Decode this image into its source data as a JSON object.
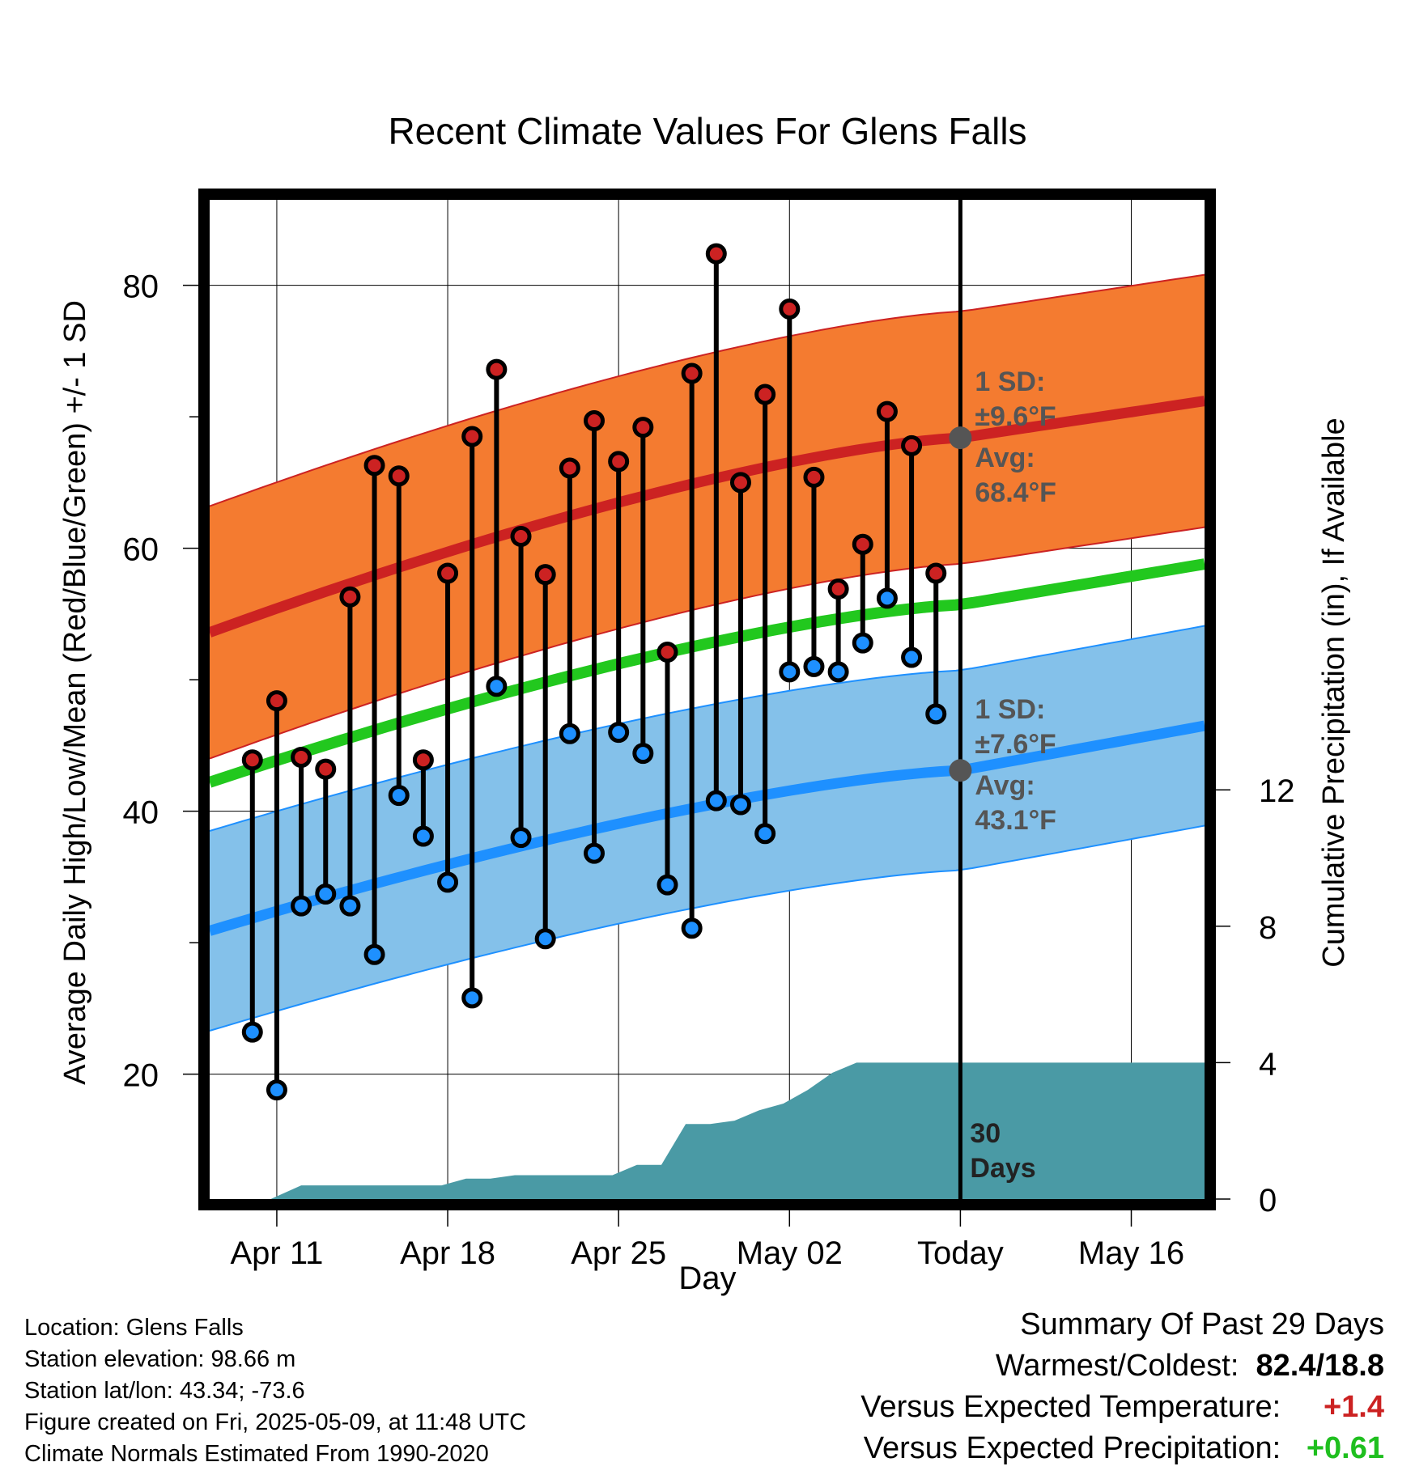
{
  "chart_data": {
    "type": "line",
    "title": "Recent Climate Values For Glens Falls",
    "xlabel": "Day",
    "ylabel": "Average Daily High/Low/Mean (Red/Blue/Green) +/- 1 SD",
    "y2label": "Cumulative Precipitation (in), If Available",
    "ylim": [
      10.5,
      86.5
    ],
    "y2lim": [
      0,
      29.3
    ],
    "yticks": [
      "20",
      "40",
      "60",
      "80"
    ],
    "y2ticks": [
      "0",
      "4",
      "8",
      "12"
    ],
    "xlim": [
      -1.75,
      39.0
    ],
    "xticks": [
      {
        "label": "Apr 11",
        "day": 1
      },
      {
        "label": "Apr 18",
        "day": 8
      },
      {
        "label": "Apr 25",
        "day": 15
      },
      {
        "label": "May 02",
        "day": 22
      },
      {
        "label": "Today",
        "day": 29
      },
      {
        "label": "May 16",
        "day": 36
      }
    ],
    "today_day": 29,
    "today_label_line1": "30",
    "today_label_line2": "Days",
    "grid": true,
    "normals": {
      "high_avg": {
        "start": 53.6,
        "today": 68.4,
        "end": 71.2
      },
      "high_sd": 9.6,
      "low_avg": {
        "start": 30.9,
        "today": 43.1,
        "end": 46.5
      },
      "low_sd": 7.6,
      "mean_avg": {
        "start": 42.2,
        "today": 55.7,
        "end": 58.8
      }
    },
    "annotations": {
      "high_sd_line1": "1 SD:",
      "high_sd_line2": "±9.6°F",
      "high_avg_line1": "Avg:",
      "high_avg_line2": "68.4°F",
      "low_sd_line1": "1 SD:",
      "low_sd_line2": "±7.6°F",
      "low_avg_line1": "Avg:",
      "low_avg_line2": "43.1°F"
    },
    "series": [
      {
        "name": "High",
        "color": "#cc2222",
        "values": [
          43.9,
          48.4,
          44.1,
          43.2,
          56.3,
          66.3,
          65.5,
          43.9,
          58.1,
          68.5,
          73.6,
          60.9,
          58.0,
          66.1,
          69.7,
          66.6,
          69.2,
          52.1,
          73.3,
          82.4,
          65.0,
          71.7,
          78.2,
          65.4,
          56.9,
          60.3,
          70.4,
          67.8,
          58.1
        ]
      },
      {
        "name": "Low",
        "color": "#1e90ff",
        "values": [
          23.2,
          18.8,
          32.8,
          33.7,
          32.8,
          29.1,
          41.2,
          38.1,
          34.6,
          25.8,
          49.5,
          38.0,
          30.3,
          45.9,
          36.8,
          46.0,
          44.4,
          34.4,
          31.1,
          40.8,
          40.5,
          38.3,
          50.6,
          51.0,
          50.6,
          52.8,
          56.2,
          51.7,
          47.4
        ]
      }
    ],
    "precip_x": [
      -1.75,
      0.75,
      2.0,
      7.75,
      8.75,
      9.75,
      10.75,
      14.75,
      15.75,
      16.75,
      17.75,
      18.75,
      19.75,
      20.75,
      21.75,
      22.75,
      23.75,
      24.75,
      25.75,
      29,
      39
    ],
    "precip_values": [
      0,
      0,
      0.4,
      0.4,
      0.6,
      0.6,
      0.7,
      0.7,
      1.0,
      1.0,
      2.2,
      2.2,
      2.3,
      2.6,
      2.8,
      3.2,
      3.7,
      4.0,
      4.0,
      4.0,
      4.0
    ]
  },
  "footer": {
    "location": "Location: Glens Falls",
    "elevation": "Station elevation: 98.66 m",
    "latlon": "Station lat/lon: 43.34; -73.6",
    "created": "Figure created on Fri, 2025-05-09, at 11:48 UTC",
    "normals": "Climate Normals Estimated From 1990-2020"
  },
  "summary": {
    "title": "Summary Of Past 29 Days",
    "warmest_label": "Warmest/Coldest:",
    "warmest_value": "82.4/18.8",
    "temp_label": "Versus Expected Temperature:",
    "temp_value": "+1.4",
    "temp_color": "#cc2222",
    "precip_label": "Versus Expected Precipitation:",
    "precip_value": "+0.61",
    "precip_color": "#1fbf1f"
  }
}
